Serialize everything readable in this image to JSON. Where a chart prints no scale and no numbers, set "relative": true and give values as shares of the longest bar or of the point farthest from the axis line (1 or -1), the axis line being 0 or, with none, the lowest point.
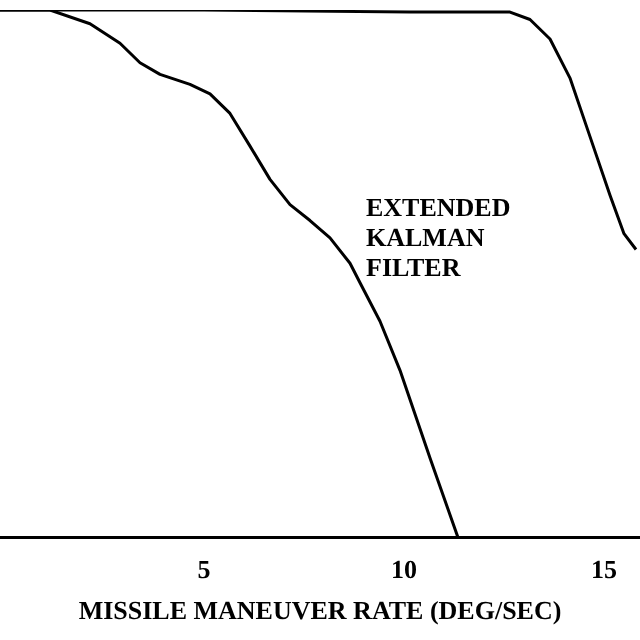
{
  "chart_data": {
    "type": "line",
    "relative": true,
    "xlabel": "MISSILE MANEUVER RATE (DEG/SEC)",
    "xlim": [
      -0.1,
      15.9
    ],
    "xticks": [
      5,
      10,
      15
    ],
    "grid": false,
    "legend": false,
    "marker": "none",
    "line_style": "solid",
    "series": [
      {
        "name": "EXTENDED KALMAN FILTER",
        "color": "#000000",
        "x": [
          -0.1,
          1.15,
          2.15,
          2.9,
          3.4,
          3.9,
          4.65,
          5.15,
          5.65,
          6.15,
          6.65,
          7.15,
          7.65,
          8.15,
          8.65,
          8.9,
          9.4,
          9.9,
          10.65,
          11.35
        ],
        "values": [
          1,
          1,
          0.974,
          0.937,
          0.9,
          0.878,
          0.859,
          0.841,
          0.804,
          0.742,
          0.679,
          0.631,
          0.601,
          0.568,
          0.52,
          0.483,
          0.41,
          0.317,
          0.151,
          0
        ]
      },
      {
        "color": "#000000",
        "x": [
          -0.1,
          5,
          10.15,
          12.65,
          13.15,
          13.65,
          14.15,
          14.65,
          15.15,
          15.5,
          15.8
        ],
        "values": [
          1,
          1,
          0.996,
          0.996,
          0.982,
          0.945,
          0.871,
          0.76,
          0.649,
          0.576,
          0.546
        ]
      }
    ]
  }
}
